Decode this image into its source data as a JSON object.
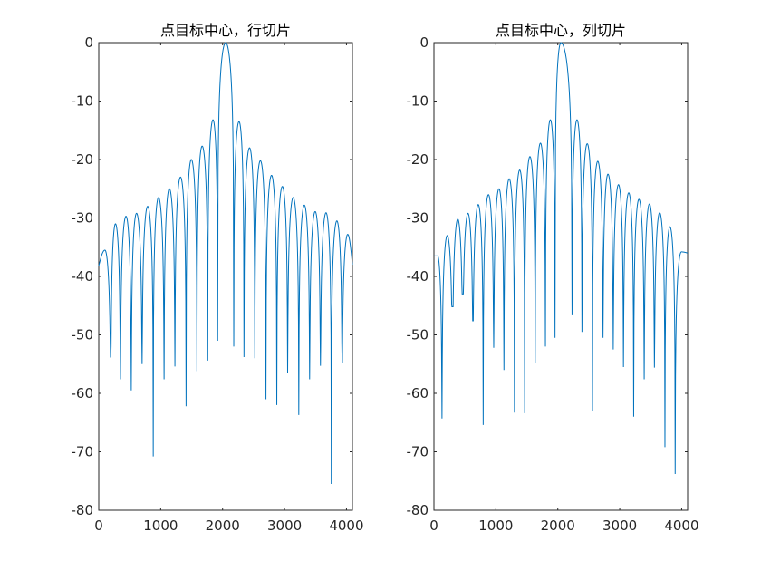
{
  "chart_data": [
    {
      "type": "line",
      "title": "点目标中心，行切片",
      "xlabel": "",
      "ylabel": "",
      "xlim": [
        0,
        4096
      ],
      "ylim": [
        -80,
        0
      ],
      "xticks": [
        0,
        1000,
        2000,
        3000,
        4000
      ],
      "yticks": [
        0,
        -10,
        -20,
        -30,
        -40,
        -50,
        -60,
        -70,
        -80
      ],
      "grid": false,
      "color": "#0072BD",
      "series": [
        {
          "lobe_boundaries_x": [
            0,
            195,
            350,
            525,
            700,
            880,
            1055,
            1230,
            1410,
            1585,
            1760,
            1920,
            2180,
            2345,
            2520,
            2700,
            2875,
            3050,
            3230,
            3405,
            3580,
            3755,
            3930,
            4096
          ],
          "lobe_peaks_x": [
            100,
            270,
            440,
            610,
            790,
            965,
            1140,
            1320,
            1495,
            1670,
            1845,
            2050,
            2265,
            2435,
            2610,
            2790,
            2965,
            3140,
            3320,
            3495,
            3670,
            3845,
            4020
          ],
          "lobe_peaks_db": [
            -35.5,
            -31,
            -29.7,
            -29.2,
            -28,
            -26.5,
            -25,
            -23,
            -20,
            -17.7,
            -13.2,
            0,
            -13.5,
            -18,
            -20.2,
            -22.7,
            -24.6,
            -26.5,
            -27.8,
            -28.9,
            -29.1,
            -30.5,
            -32.8
          ],
          "null_depths_db": [
            -53.8,
            -57.6,
            -59.5,
            -55,
            -70.8,
            -57.6,
            -55.4,
            -62.2,
            -56.2,
            -54.4,
            -51,
            -52,
            -53.8,
            -54,
            -61,
            -62,
            -56.5,
            -63.7,
            -57.6,
            -55.3,
            -75.5,
            -54.8
          ],
          "edge_values_db": [
            -38.2,
            -38
          ]
        }
      ]
    },
    {
      "type": "line",
      "title": "点目标中心，列切片",
      "xlabel": "",
      "ylabel": "",
      "xlim": [
        0,
        4096
      ],
      "ylim": [
        -80,
        0
      ],
      "xticks": [
        0,
        1000,
        2000,
        3000,
        4000
      ],
      "yticks": [
        0,
        -10,
        -20,
        -30,
        -40,
        -50,
        -60,
        -70,
        -80
      ],
      "grid": false,
      "color": "#0072BD",
      "series": [
        {
          "lobe_boundaries_x": [
            0,
            130,
            300,
            465,
            630,
            795,
            965,
            1130,
            1300,
            1465,
            1635,
            1800,
            1955,
            2230,
            2390,
            2560,
            2730,
            2895,
            3060,
            3225,
            3395,
            3560,
            3730,
            3895,
            4096
          ],
          "lobe_peaks_x": [
            60,
            215,
            385,
            550,
            715,
            880,
            1050,
            1215,
            1385,
            1550,
            1720,
            1880,
            2050,
            2310,
            2475,
            2645,
            2810,
            2980,
            3145,
            3310,
            3480,
            3645,
            3810,
            3995
          ],
          "lobe_peaks_db": [
            -36.5,
            -33,
            -30.2,
            -29.2,
            -27.7,
            -26,
            -25,
            -23.3,
            -21.8,
            -19.5,
            -17.2,
            -13.2,
            0,
            -13.2,
            -17.3,
            -20.3,
            -22.5,
            -24.3,
            -25.7,
            -26.8,
            -27.6,
            -29.1,
            -31.5,
            -35.8
          ],
          "null_depths_db": [
            -64.3,
            -45.2,
            -43,
            -47.6,
            -65.4,
            -52.2,
            -56,
            -63.3,
            -63.4,
            -54.8,
            -52,
            -50.5,
            -46.5,
            -49.5,
            -63,
            -50.5,
            -52.5,
            -55.5,
            -64,
            -57.6,
            -55.6,
            -69.2,
            -73.8
          ],
          "edge_values_db": [
            -36.5,
            -36
          ]
        }
      ]
    }
  ]
}
